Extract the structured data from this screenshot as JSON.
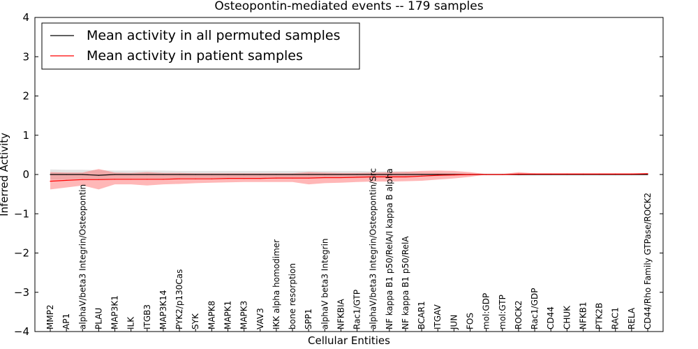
{
  "chart_data": {
    "type": "line",
    "title": "Osteopontin-mediated events -- 179 samples",
    "xlabel": "Cellular Entities",
    "ylabel": "Inferred Activity",
    "ylim": [
      -4,
      4
    ],
    "yticks": [
      "−4",
      "−3",
      "−2",
      "−1",
      "0",
      "1",
      "2",
      "3",
      "4"
    ],
    "ytick_values": [
      -4,
      -3,
      -2,
      -1,
      0,
      1,
      2,
      3,
      4
    ],
    "legend_position": "upper-left",
    "categories": [
      "MMP2",
      "AP1",
      "alphaV/beta3 Integrin/Osteopontin",
      "PLAU",
      "MAP3K1",
      "ILK",
      "ITGB3",
      "MAP3K14",
      "PYK2/p130Cas",
      "SYK",
      "MAPK8",
      "MAPK1",
      "MAPK3",
      "VAV3",
      "IKK alpha homodimer",
      "bone resorption",
      "SPP1",
      "alphaV beta3 Integrin",
      "NFKBIA",
      "Rac1/GTP",
      "alphaV/beta3 Integrin/Osteopontin/Src",
      "NF kappa B1 p50/RelA/I kappa B alpha",
      "NF kappa B1 p50/RelA",
      "BCAR1",
      "ITGAV",
      "JUN",
      "FOS",
      "mol:GDP",
      "mol:GTP",
      "ROCK2",
      "Rac1/GDP",
      "CD44",
      "CHUK",
      "NFKB1",
      "PTK2B",
      "RAC1",
      "RELA",
      "CD44/Rho Family GTPase/ROCK2"
    ],
    "series": [
      {
        "name": "Mean activity in all permuted samples",
        "color": "#000000",
        "band_color": "#b0b0b0",
        "values": [
          0.0,
          0.0,
          0.0,
          -0.02,
          0.0,
          0.0,
          0.0,
          0.0,
          0.0,
          0.0,
          0.0,
          0.0,
          0.0,
          0.0,
          0.0,
          0.0,
          0.0,
          0.0,
          0.0,
          0.0,
          0.0,
          0.0,
          0.0,
          0.0,
          0.0,
          0.0,
          0.0,
          0.0,
          0.0,
          0.0,
          0.0,
          0.0,
          0.0,
          0.0,
          0.0,
          0.0,
          0.0,
          0.0
        ],
        "lower": [
          -0.13,
          -0.12,
          -0.12,
          -0.13,
          -0.1,
          -0.1,
          -0.1,
          -0.1,
          -0.09,
          -0.09,
          -0.09,
          -0.09,
          -0.09,
          -0.09,
          -0.09,
          -0.09,
          -0.09,
          -0.09,
          -0.09,
          -0.09,
          -0.08,
          -0.08,
          -0.08,
          -0.05,
          -0.04,
          -0.03,
          -0.02,
          -0.02,
          -0.02,
          -0.02,
          -0.02,
          -0.02,
          -0.02,
          -0.02,
          -0.02,
          -0.02,
          -0.02,
          -0.02
        ],
        "upper": [
          0.13,
          0.12,
          0.12,
          0.11,
          0.1,
          0.1,
          0.1,
          0.1,
          0.09,
          0.09,
          0.09,
          0.09,
          0.09,
          0.09,
          0.09,
          0.09,
          0.09,
          0.09,
          0.09,
          0.09,
          0.08,
          0.08,
          0.08,
          0.05,
          0.04,
          0.03,
          0.02,
          0.02,
          0.02,
          0.02,
          0.02,
          0.02,
          0.02,
          0.02,
          0.02,
          0.02,
          0.02,
          0.02
        ]
      },
      {
        "name": "Mean activity in patient samples",
        "color": "#ff0000",
        "band_color": "#ff6060",
        "values": [
          -0.17,
          -0.15,
          -0.13,
          -0.13,
          -0.12,
          -0.12,
          -0.12,
          -0.12,
          -0.11,
          -0.11,
          -0.11,
          -0.1,
          -0.1,
          -0.1,
          -0.09,
          -0.09,
          -0.09,
          -0.08,
          -0.08,
          -0.07,
          -0.06,
          -0.06,
          -0.06,
          -0.04,
          -0.02,
          -0.01,
          0.0,
          0.0,
          0.0,
          0.01,
          0.01,
          0.01,
          0.01,
          0.01,
          0.01,
          0.01,
          0.01,
          0.02
        ],
        "lower": [
          -0.38,
          -0.33,
          -0.28,
          -0.38,
          -0.25,
          -0.25,
          -0.28,
          -0.25,
          -0.24,
          -0.22,
          -0.21,
          -0.2,
          -0.19,
          -0.19,
          -0.19,
          -0.19,
          -0.25,
          -0.22,
          -0.21,
          -0.19,
          -0.18,
          -0.18,
          -0.17,
          -0.16,
          -0.13,
          -0.1,
          -0.06,
          0.0,
          0.0,
          -0.02,
          -0.01,
          -0.01,
          -0.01,
          -0.01,
          -0.01,
          -0.01,
          -0.01,
          -0.01
        ],
        "upper": [
          0.06,
          0.05,
          0.05,
          0.14,
          0.05,
          0.04,
          0.06,
          0.04,
          0.04,
          0.03,
          0.03,
          0.03,
          0.03,
          0.03,
          0.03,
          0.03,
          0.06,
          0.05,
          0.04,
          0.04,
          0.05,
          0.06,
          0.07,
          0.09,
          0.1,
          0.09,
          0.06,
          0.01,
          0.01,
          0.06,
          0.03,
          0.03,
          0.03,
          0.03,
          0.03,
          0.03,
          0.03,
          0.03
        ]
      }
    ]
  }
}
